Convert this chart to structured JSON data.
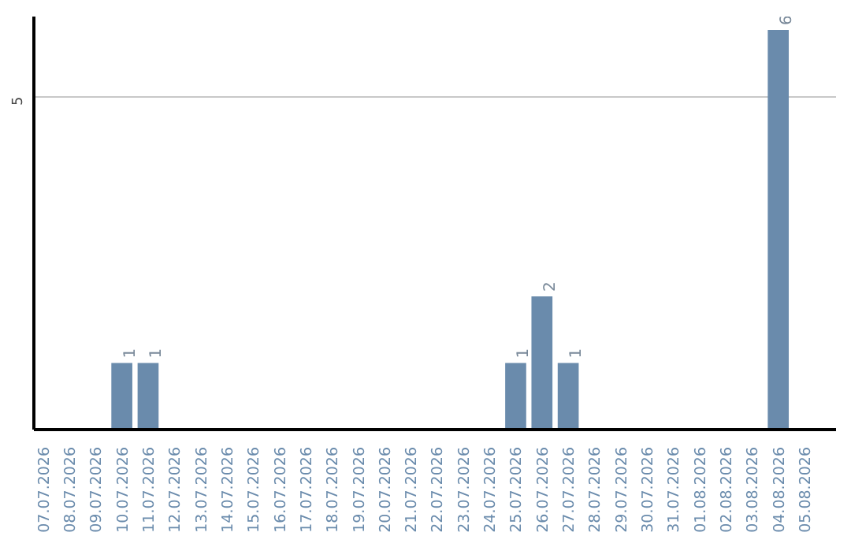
{
  "chart_data": {
    "type": "bar",
    "categories": [
      "07.07.2026",
      "08.07.2026",
      "09.07.2026",
      "10.07.2026",
      "11.07.2026",
      "12.07.2026",
      "13.07.2026",
      "14.07.2026",
      "15.07.2026",
      "16.07.2026",
      "17.07.2026",
      "18.07.2026",
      "19.07.2026",
      "20.07.2026",
      "21.07.2026",
      "22.07.2026",
      "23.07.2026",
      "24.07.2026",
      "25.07.2026",
      "26.07.2026",
      "27.07.2026",
      "28.07.2026",
      "29.07.2026",
      "30.07.2026",
      "31.07.2026",
      "01.08.2026",
      "02.08.2026",
      "03.08.2026",
      "04.08.2026",
      "05.08.2026"
    ],
    "values": [
      0,
      0,
      0,
      1,
      1,
      0,
      0,
      0,
      0,
      0,
      0,
      0,
      0,
      0,
      0,
      0,
      0,
      0,
      1,
      2,
      1,
      0,
      0,
      0,
      0,
      0,
      0,
      0,
      6,
      0
    ],
    "value_labels": [
      null,
      null,
      null,
      "1",
      "1",
      null,
      null,
      null,
      null,
      null,
      null,
      null,
      null,
      null,
      null,
      null,
      null,
      null,
      "1",
      "2",
      "1",
      null,
      null,
      null,
      null,
      null,
      null,
      null,
      "6",
      null
    ],
    "color": "#6a8bac",
    "ylim": [
      0,
      6.2
    ],
    "yticks": [
      5
    ],
    "grid": "y"
  }
}
